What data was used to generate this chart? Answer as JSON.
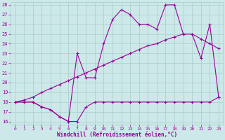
{
  "xlabel": "Windchill (Refroidissement éolien,°C)",
  "xlim": [
    0,
    23
  ],
  "ylim": [
    16,
    28
  ],
  "yticks": [
    16,
    17,
    18,
    19,
    20,
    21,
    22,
    23,
    24,
    25,
    26,
    27,
    28
  ],
  "xticks": [
    0,
    1,
    2,
    3,
    4,
    5,
    6,
    7,
    8,
    9,
    10,
    11,
    12,
    13,
    14,
    15,
    16,
    17,
    18,
    19,
    20,
    21,
    22,
    23
  ],
  "bg_color": "#cce8e8",
  "grid_color": "#aacccc",
  "line_color": "#990099",
  "line1_x": [
    0,
    1,
    2,
    3,
    4,
    5,
    6,
    7,
    8,
    9,
    10,
    11,
    12,
    13,
    14,
    15,
    16,
    17,
    18,
    19,
    20,
    21,
    22,
    23
  ],
  "line1_y": [
    18.0,
    18.0,
    18.0,
    17.5,
    17.2,
    16.5,
    16.0,
    16.0,
    17.5,
    18.0,
    18.0,
    18.0,
    18.0,
    18.0,
    18.0,
    18.0,
    18.0,
    18.0,
    18.0,
    18.0,
    18.0,
    18.0,
    18.0,
    18.5
  ],
  "line2_x": [
    0,
    1,
    2,
    3,
    4,
    5,
    6,
    7,
    8,
    9,
    10,
    11,
    12,
    13,
    14,
    15,
    16,
    17,
    18,
    19,
    20,
    21,
    22,
    23
  ],
  "line2_y": [
    18.0,
    18.2,
    18.5,
    19.0,
    19.4,
    19.8,
    20.2,
    20.6,
    21.0,
    21.4,
    21.8,
    22.2,
    22.6,
    23.0,
    23.4,
    23.8,
    24.0,
    24.4,
    24.7,
    25.0,
    25.0,
    24.5,
    24.0,
    23.5
  ],
  "line3_x": [
    0,
    1,
    2,
    3,
    4,
    5,
    6,
    7,
    8,
    9,
    10,
    11,
    12,
    13,
    14,
    15,
    16,
    17,
    18,
    19,
    20,
    21,
    22,
    23
  ],
  "line3_y": [
    18.0,
    18.0,
    18.0,
    17.5,
    17.2,
    16.5,
    16.0,
    23.0,
    20.5,
    20.5,
    24.0,
    26.5,
    27.5,
    27.0,
    26.0,
    26.0,
    25.5,
    28.0,
    28.0,
    25.0,
    25.0,
    22.5,
    26.0,
    18.5
  ]
}
